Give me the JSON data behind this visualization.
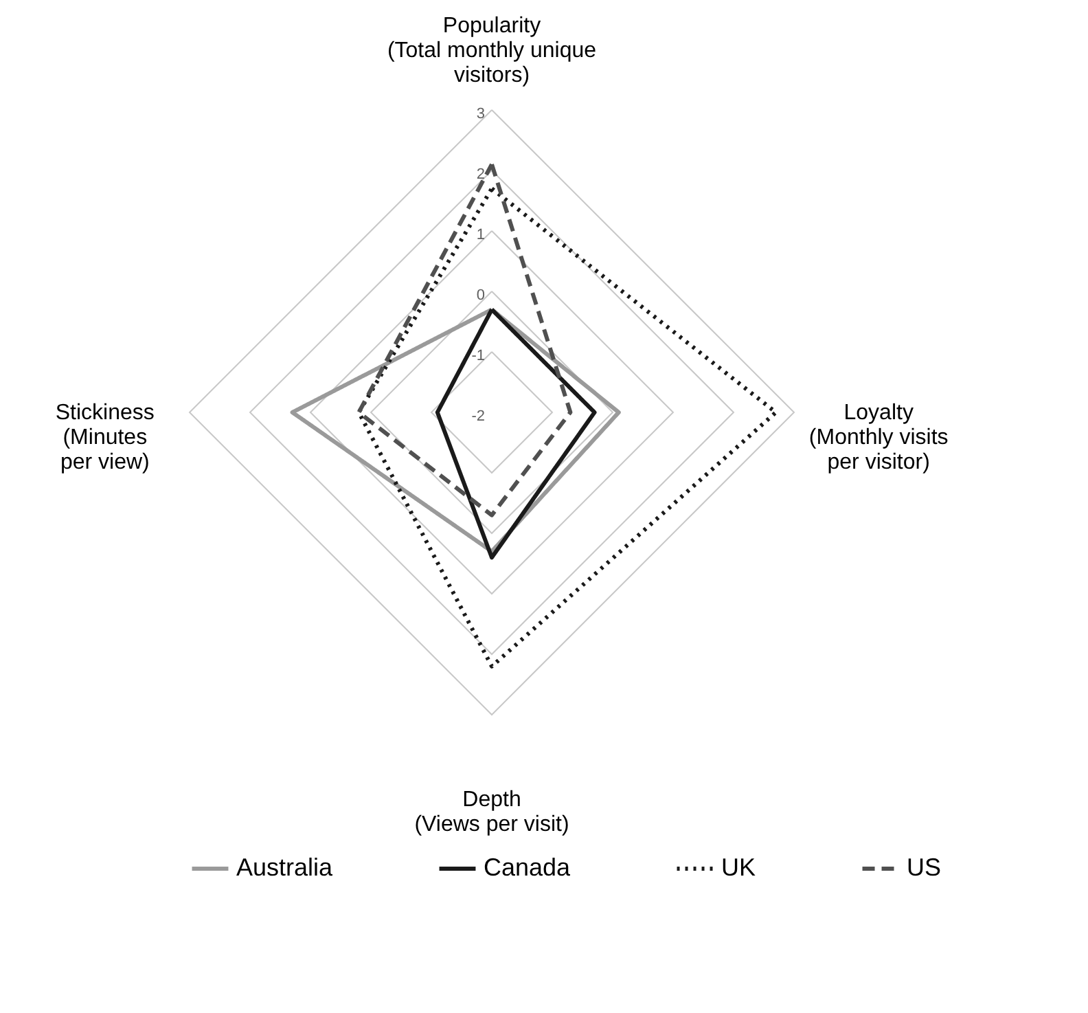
{
  "chart_data": {
    "type": "radar",
    "categories": [
      "Popularity\n(Total monthly unique\nvisitors)",
      "Loyalty\n(Monthly visits\nper visitor)",
      "Depth\n(Views per visit)",
      "Stickiness\n(Minutes\nper view)"
    ],
    "ylim": [
      -2,
      3
    ],
    "yticks": [
      -2,
      -1,
      0,
      1,
      2,
      3
    ],
    "grid": true,
    "legend": "bottom",
    "marker": "none",
    "series": [
      {
        "name": "Australia",
        "color": "#9a9a9a",
        "line_style": "solid",
        "values": [
          -0.3,
          0.1,
          0.3,
          1.3
        ]
      },
      {
        "name": "Canada",
        "color": "#1a1a1a",
        "line_style": "solid",
        "values": [
          -0.3,
          -0.3,
          0.4,
          -1.1
        ]
      },
      {
        "name": "UK",
        "color": "#1a1a1a",
        "line_style": "dotted",
        "values": [
          1.7,
          2.7,
          2.2,
          0.2
        ]
      },
      {
        "name": "US",
        "color": "#505050",
        "line_style": "dashed",
        "values": [
          2.1,
          -0.7,
          -0.3,
          0.2
        ]
      }
    ]
  }
}
